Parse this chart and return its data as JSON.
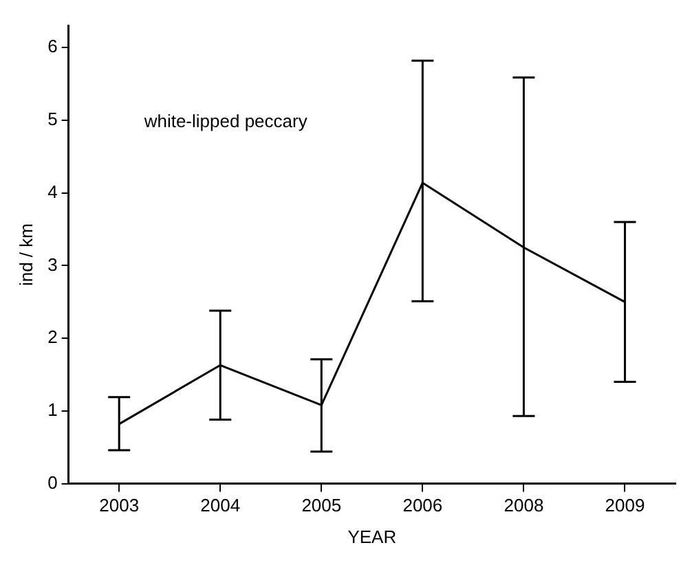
{
  "chart_data": {
    "type": "line",
    "xlabel": "YEAR",
    "ylabel": "ind / km",
    "categories": [
      "2003",
      "2004",
      "2005",
      "2006",
      "2008",
      "2009"
    ],
    "series": [
      {
        "color": "#000000",
        "values": [
          0.82,
          1.63,
          1.08,
          4.14,
          3.25,
          2.5
        ],
        "errors": [
          [
            0.46,
            1.19
          ],
          [
            0.88,
            2.38
          ],
          [
            0.44,
            1.71
          ],
          [
            2.51,
            5.82
          ],
          [
            0.93,
            5.59
          ],
          [
            1.4,
            3.6
          ]
        ]
      }
    ],
    "ylim": [
      0,
      6.3
    ],
    "yticks": [
      0,
      1,
      2,
      3,
      4,
      5,
      6
    ],
    "grid": false,
    "legend": false,
    "marker": "none",
    "line_style": "solid",
    "annotations": [
      "white-lipped peccary"
    ]
  }
}
